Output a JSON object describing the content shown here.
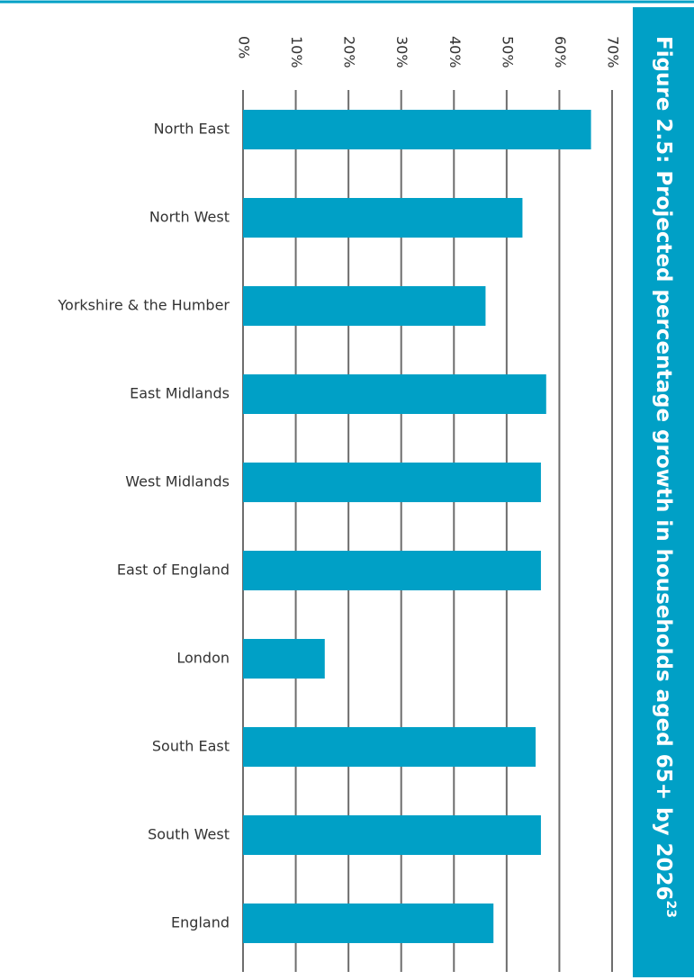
{
  "chart_data": {
    "type": "bar",
    "orientation": "horizontal",
    "title": "Figure 2.5: Projected percentage growth in households aged 65+ by 2026",
    "title_superscript": "23",
    "categories": [
      "North East",
      "North West",
      "Yorkshire & the Humber",
      "East Midlands",
      "West Midlands",
      "East of England",
      "London",
      "South East",
      "South West",
      "England"
    ],
    "values": [
      66,
      53,
      46,
      57.5,
      56.5,
      56.5,
      15.5,
      55.5,
      56.5,
      47.5
    ],
    "color": "#00a0c6",
    "xlim": [
      0,
      70
    ],
    "xticks": [
      {
        "value": 0,
        "label": "0%"
      },
      {
        "value": 10,
        "label": "10%"
      },
      {
        "value": 20,
        "label": "20%"
      },
      {
        "value": 30,
        "label": "30%"
      },
      {
        "value": 40,
        "label": "40%"
      },
      {
        "value": 50,
        "label": "50%"
      },
      {
        "value": 60,
        "label": "60%"
      },
      {
        "value": 70,
        "label": "70%"
      }
    ],
    "grid": true
  }
}
